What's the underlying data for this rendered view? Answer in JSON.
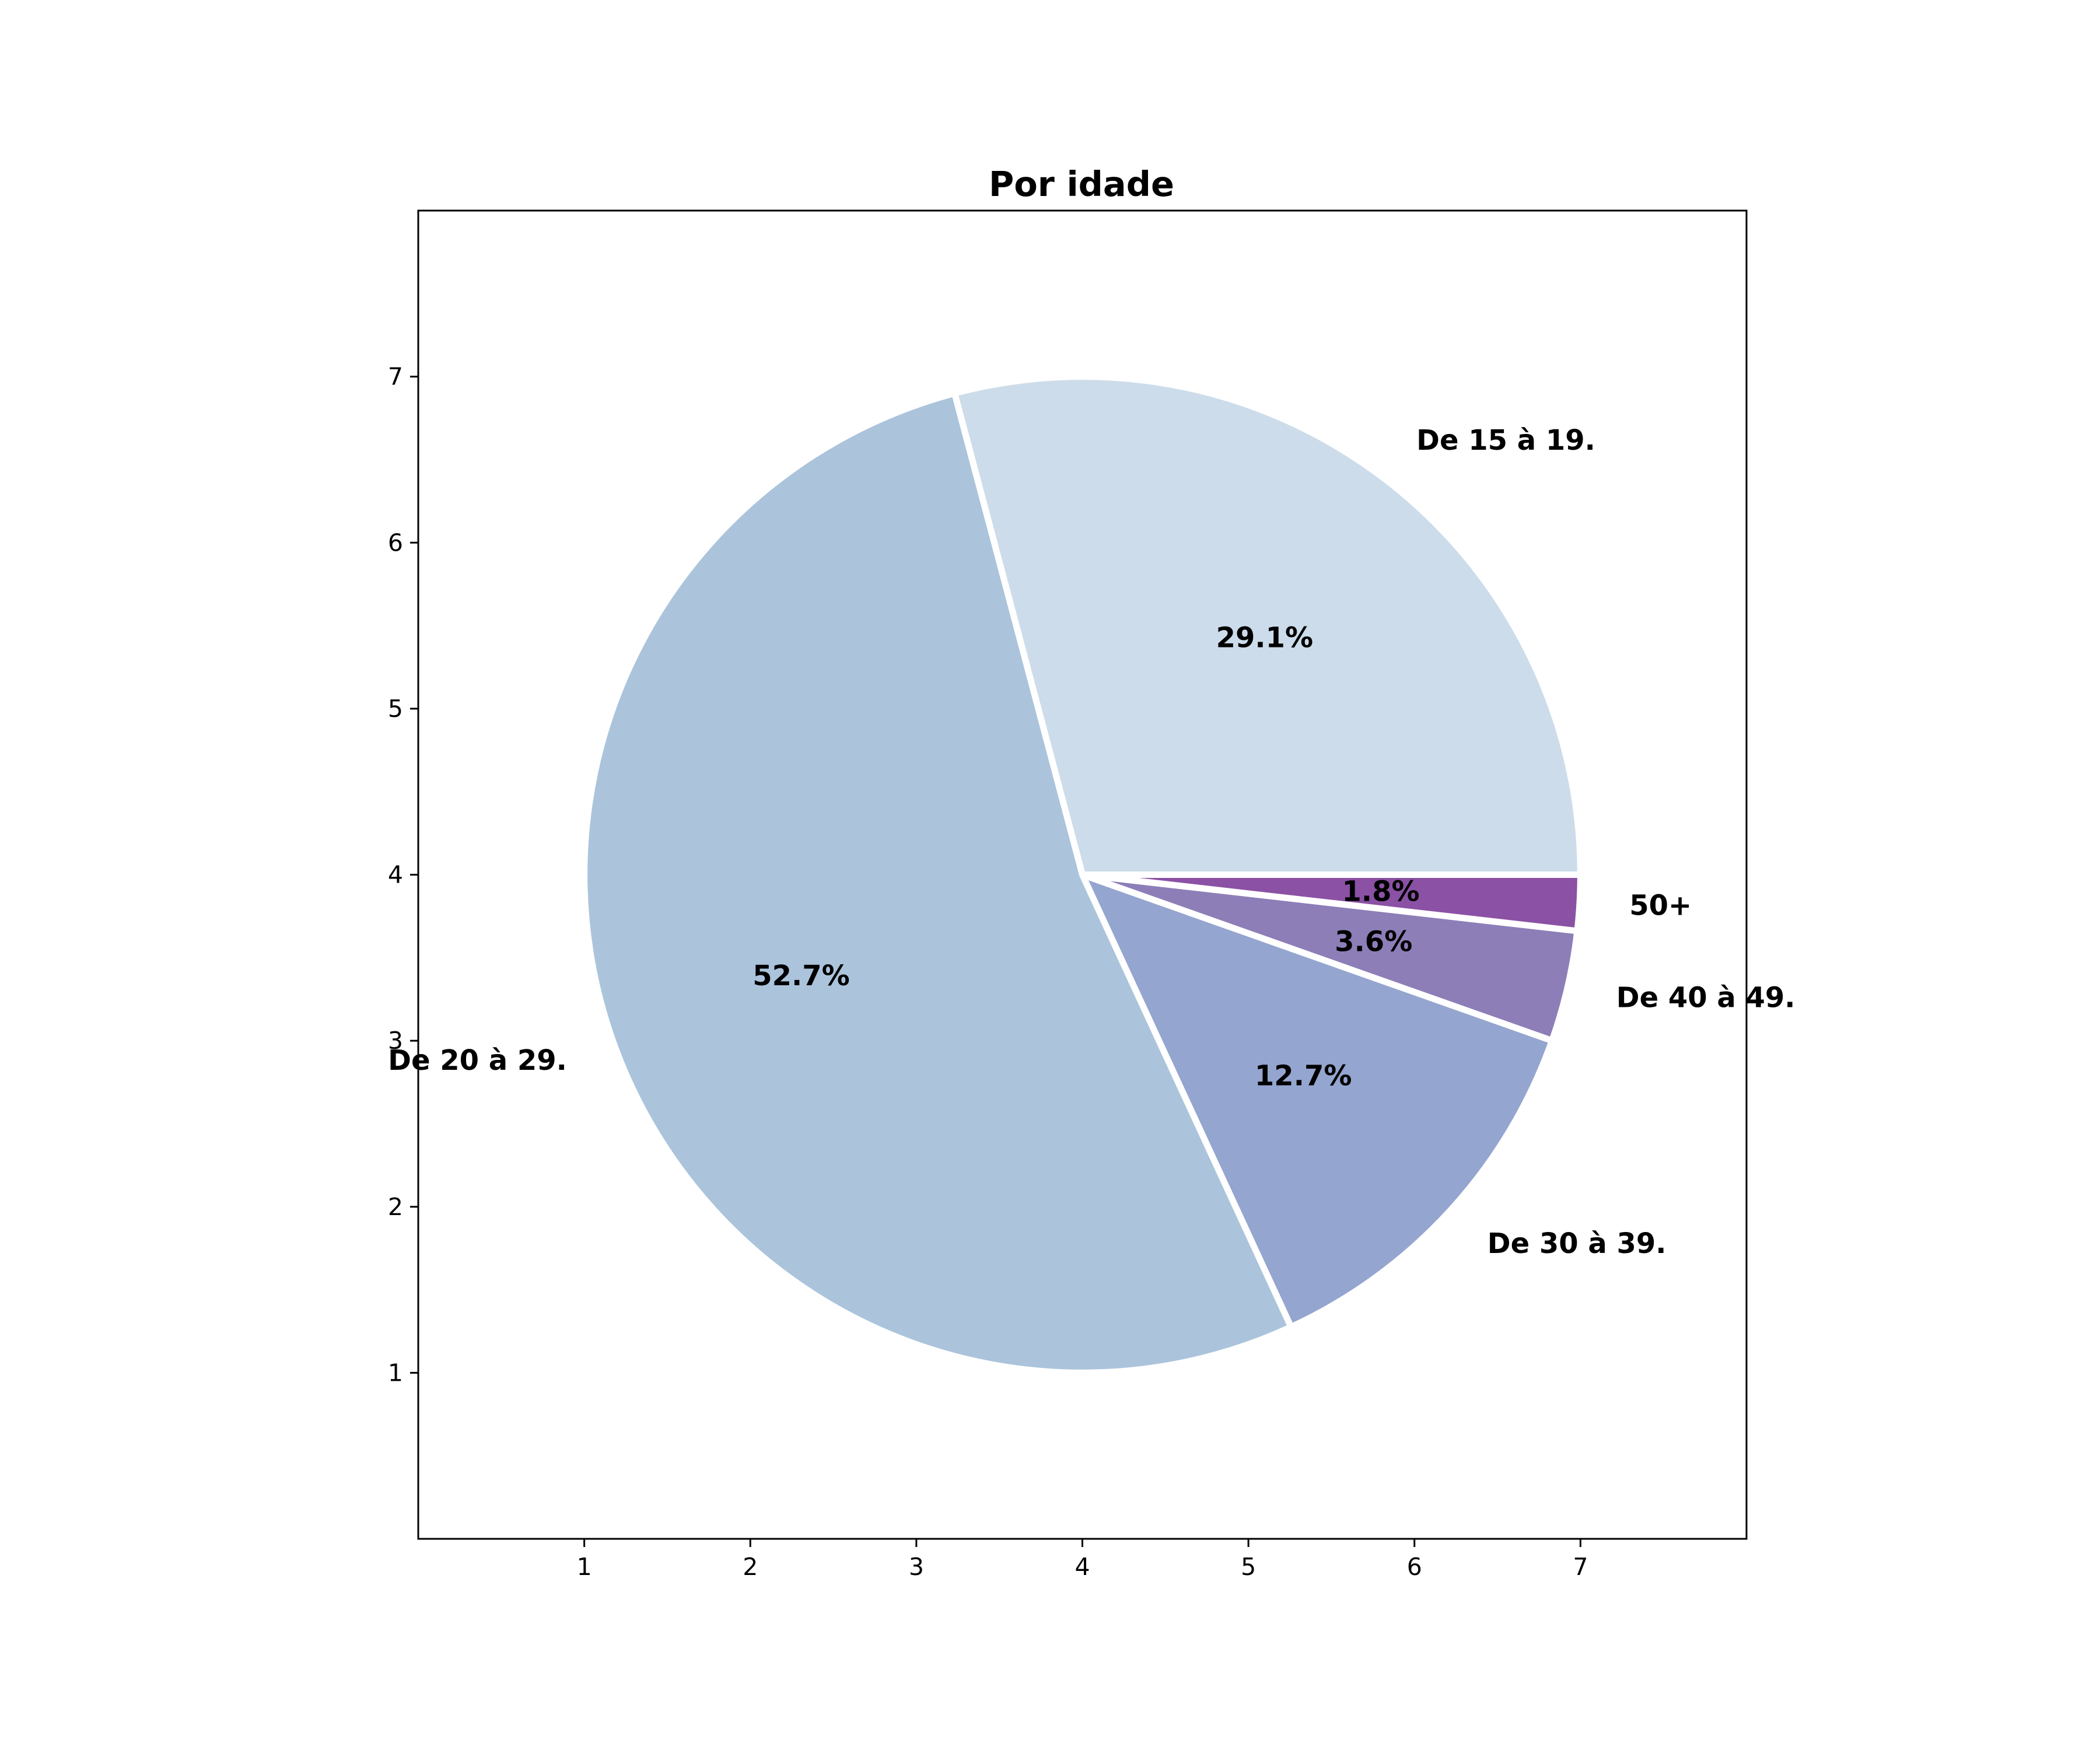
{
  "chart_data": {
    "type": "pie",
    "title": "Por idade",
    "categories": [
      "De 15 à 19.",
      "De 20 à 29.",
      "De 30 à 39.",
      "De 40 à 49.",
      "50+"
    ],
    "values": [
      29.1,
      52.7,
      12.7,
      3.6,
      1.8
    ],
    "value_labels": [
      "29.1%",
      "52.7%",
      "12.7%",
      "3.6%",
      "1.8%"
    ],
    "colors": [
      "#ccdcea",
      "#abc4dc",
      "#94a5cf",
      "#8d7eb8",
      "#8b51a4"
    ],
    "edge_color": "#ffffff",
    "start_angle_deg": 0,
    "direction": "counterclockwise",
    "center": [
      4,
      4
    ],
    "radius": 3,
    "xlim": [
      0,
      8
    ],
    "ylim": [
      0,
      8
    ],
    "xticks": [
      1,
      2,
      3,
      4,
      5,
      6,
      7
    ],
    "yticks": [
      1,
      2,
      3,
      4,
      5,
      6,
      7
    ],
    "grid": false,
    "legend": "none"
  }
}
